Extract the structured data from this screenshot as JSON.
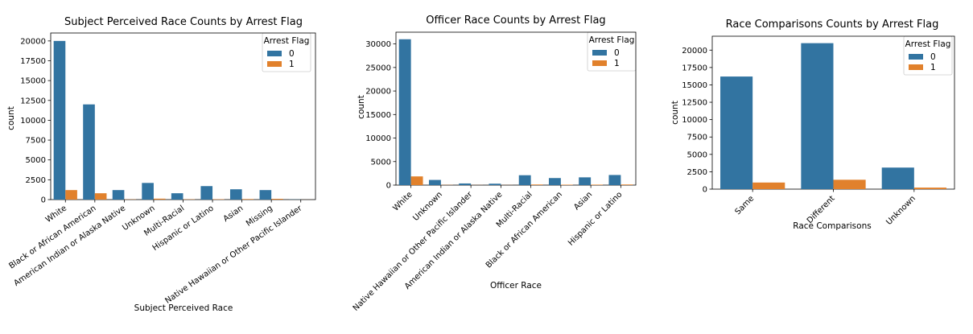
{
  "series_colors": {
    "0": "#3274a1",
    "1": "#e1812c"
  },
  "chart_data": [
    {
      "type": "bar",
      "title": "Subject Perceived Race Counts by Arrest Flag",
      "xlabel": "Subject Perceived Race",
      "ylabel": "count",
      "legend_title": "Arrest Flag",
      "legend_placement": "top-right",
      "ylim": [
        0,
        21000
      ],
      "yticks": [
        0,
        2500,
        5000,
        7500,
        10000,
        12500,
        15000,
        17500,
        20000
      ],
      "categories": [
        "White",
        "Black or African American",
        "American Indian or Alaska Native",
        "Unknown",
        "Multi-Racial",
        "Hispanic or Latino",
        "Asian",
        "Missing",
        "Native Hawaiian or Other Pacific Islander"
      ],
      "series": [
        {
          "name": "0",
          "values": [
            20000,
            12000,
            1200,
            2100,
            800,
            1700,
            1300,
            1200,
            20
          ]
        },
        {
          "name": "1",
          "values": [
            1200,
            800,
            30,
            120,
            40,
            50,
            70,
            100,
            5
          ]
        }
      ]
    },
    {
      "type": "bar",
      "title": "Officer Race Counts by Arrest Flag",
      "xlabel": "Officer Race",
      "ylabel": "count",
      "legend_title": "Arrest Flag",
      "legend_placement": "top-right",
      "ylim": [
        0,
        32500
      ],
      "yticks": [
        0,
        5000,
        10000,
        15000,
        20000,
        25000,
        30000
      ],
      "categories": [
        "White",
        "Unknown",
        "Native Hawaiian or Other Pacific Islander",
        "American Indian or Alaska Native",
        "Multi-Racial",
        "Black or African American",
        "Asian",
        "Hispanic or Latino"
      ],
      "series": [
        {
          "name": "0",
          "values": [
            31000,
            1100,
            350,
            300,
            2100,
            1500,
            1650,
            2150
          ]
        },
        {
          "name": "1",
          "values": [
            1850,
            40,
            20,
            20,
            130,
            90,
            100,
            130
          ]
        }
      ]
    },
    {
      "type": "bar",
      "title": "Race Comparisons Counts by Arrest Flag",
      "xlabel": "Race Comparisons",
      "ylabel": "count",
      "legend_title": "Arrest Flag",
      "legend_placement": "top-right",
      "ylim": [
        0,
        22000
      ],
      "yticks": [
        0,
        2500,
        5000,
        7500,
        10000,
        12500,
        15000,
        17500,
        20000
      ],
      "categories": [
        "Same",
        "Different",
        "Unknown"
      ],
      "series": [
        {
          "name": "0",
          "values": [
            16200,
            21000,
            3100
          ]
        },
        {
          "name": "1",
          "values": [
            950,
            1350,
            220
          ]
        }
      ]
    }
  ]
}
